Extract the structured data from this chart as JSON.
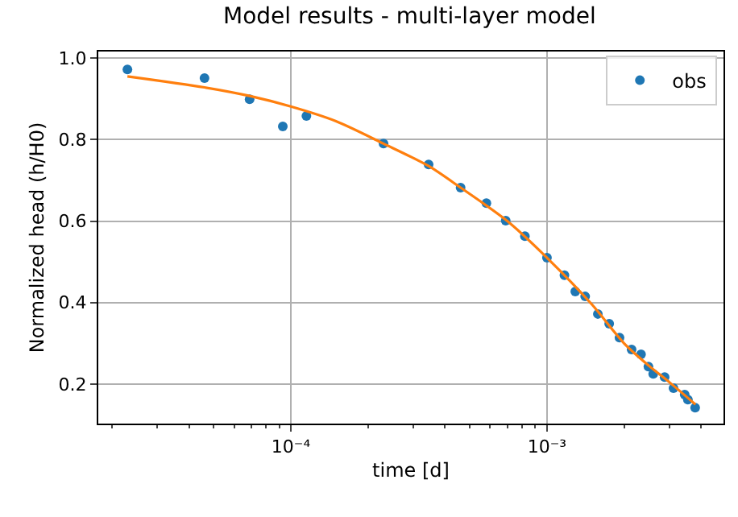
{
  "chart_data": {
    "type": "scatter",
    "title": "Model results - multi-layer model",
    "xlabel": "time [d]",
    "ylabel": "Normalized head (h/H0)",
    "log": "x",
    "grid": true,
    "legend": "top right",
    "xlim": [
      1.77e-05,
      0.00489
    ],
    "ylim": [
      0.103,
      1.016
    ],
    "xticks": [
      {
        "value": 2e-05,
        "label": null
      },
      {
        "value": 3e-05,
        "label": null
      },
      {
        "value": 4e-05,
        "label": null
      },
      {
        "value": 5e-05,
        "label": null
      },
      {
        "value": 6e-05,
        "label": null
      },
      {
        "value": 7e-05,
        "label": null
      },
      {
        "value": 8e-05,
        "label": null
      },
      {
        "value": 9e-05,
        "label": null
      },
      {
        "value": 0.0001,
        "label": "10⁻⁴"
      },
      {
        "value": 0.0002,
        "label": null
      },
      {
        "value": 0.0003,
        "label": null
      },
      {
        "value": 0.0004,
        "label": null
      },
      {
        "value": 0.0005,
        "label": null
      },
      {
        "value": 0.0006,
        "label": null
      },
      {
        "value": 0.0007,
        "label": null
      },
      {
        "value": 0.0008,
        "label": null
      },
      {
        "value": 0.0009,
        "label": null
      },
      {
        "value": 0.001,
        "label": "10⁻³"
      },
      {
        "value": 0.002,
        "label": null
      },
      {
        "value": 0.003,
        "label": null
      },
      {
        "value": 0.004,
        "label": null
      }
    ],
    "yticks": [
      0.2,
      0.4,
      0.6,
      0.8,
      {
        "value": 1.0,
        "label": "1.0"
      }
    ],
    "series": [
      {
        "name": "obs",
        "marker": "circle",
        "color": "#1f77b4",
        "x": [
          2.3e-05,
          4.6e-05,
          6.9e-05,
          9.3e-05,
          0.000115,
          0.00023,
          0.000345,
          0.00046,
          0.00058,
          0.00069,
          0.00082,
          0.001,
          0.00117,
          0.00129,
          0.00141,
          0.00158,
          0.00175,
          0.00192,
          0.00214,
          0.00233,
          0.00249,
          0.0026,
          0.00288,
          0.00312,
          0.00345,
          0.00355,
          0.00379
        ],
        "values": [
          0.972,
          0.951,
          0.899,
          0.832,
          0.858,
          0.79,
          0.739,
          0.682,
          0.644,
          0.601,
          0.563,
          0.51,
          0.467,
          0.427,
          0.415,
          0.372,
          0.348,
          0.314,
          0.285,
          0.273,
          0.243,
          0.225,
          0.217,
          0.19,
          0.174,
          0.162,
          0.142
        ]
      },
      {
        "type": "line",
        "marker": "none",
        "color": "#ff7f0e",
        "x": [
          2.3e-05,
          4.6e-05,
          6.9e-05,
          0.0001,
          0.00015,
          0.00023,
          0.000345,
          0.00046,
          0.0007,
          0.001,
          0.0015,
          0.002,
          0.0025,
          0.003,
          0.0038
        ],
        "values": [
          0.955,
          0.928,
          0.907,
          0.881,
          0.845,
          0.79,
          0.735,
          0.682,
          0.6,
          0.51,
          0.395,
          0.3,
          0.245,
          0.205,
          0.15
        ]
      }
    ]
  }
}
